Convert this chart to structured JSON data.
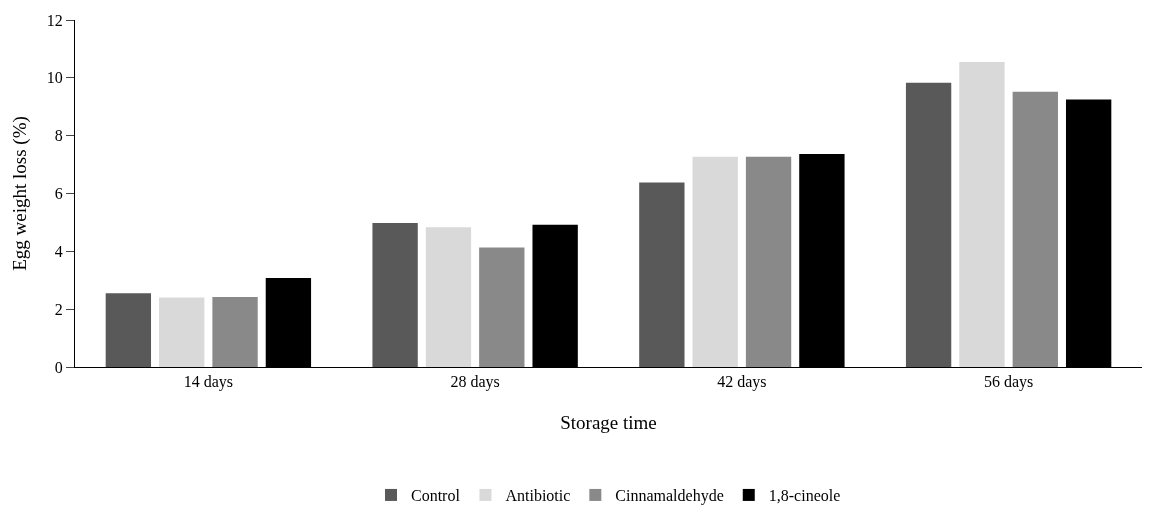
{
  "chart_data": {
    "type": "bar",
    "xlabel": "Storage time",
    "ylabel": "Egg weight loss (%)",
    "categories": [
      "14 days",
      "28 days",
      "42 days",
      "56 days"
    ],
    "series": [
      {
        "name": "Control",
        "color": "#595959",
        "values": [
          2.55,
          4.98,
          6.38,
          9.83
        ]
      },
      {
        "name": "Antibiotic",
        "color": "#d9d9d9",
        "values": [
          2.4,
          4.83,
          7.27,
          10.55
        ]
      },
      {
        "name": "Cinnamaldehyde",
        "color": "#898989",
        "values": [
          2.42,
          4.13,
          7.27,
          9.52
        ]
      },
      {
        "name": "1,8-cineole",
        "color": "#000000",
        "values": [
          3.08,
          4.92,
          7.37,
          9.25
        ]
      }
    ],
    "ylim": [
      0,
      12
    ],
    "yticks": [
      0,
      2,
      4,
      6,
      8,
      10,
      12
    ],
    "legend": "bottom"
  }
}
